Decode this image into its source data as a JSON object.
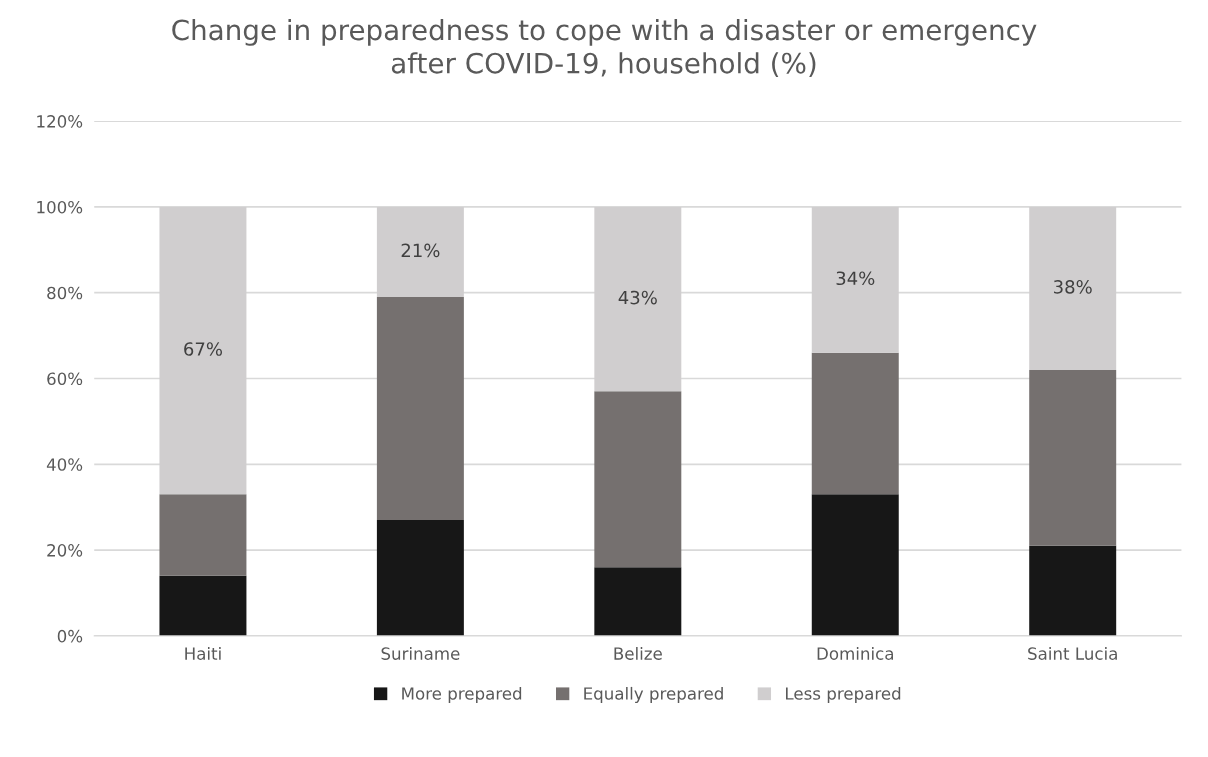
{
  "chart_data": {
    "type": "bar",
    "stacked": true,
    "title": "Change in preparedness to cope with a disaster or emergency\nafter COVID-19, household (%)",
    "categories": [
      "Haiti",
      "Suriname",
      "Belize",
      "Dominica",
      "Saint Lucia"
    ],
    "series": [
      {
        "name": "More prepared",
        "color": "#171717",
        "values": [
          14,
          27,
          16,
          33,
          21
        ]
      },
      {
        "name": "Equally prepared",
        "color": "#75706f",
        "values": [
          19,
          52,
          41,
          33,
          41
        ]
      },
      {
        "name": "Less prepared",
        "color": "#d0cecf",
        "values": [
          67,
          21,
          43,
          34,
          38
        ],
        "value_labels": [
          "67%",
          "21%",
          "43%",
          "34%",
          "38%"
        ]
      }
    ],
    "ylim": [
      0,
      120
    ],
    "yticks": [
      {
        "value": 0,
        "label": "0%"
      },
      {
        "value": 20,
        "label": "20%"
      },
      {
        "value": 40,
        "label": "40%"
      },
      {
        "value": 60,
        "label": "60%"
      },
      {
        "value": 80,
        "label": "80%"
      },
      {
        "value": 100,
        "label": "100%"
      },
      {
        "value": 120,
        "label": "120%"
      }
    ],
    "grid": "y",
    "legend": "bottom"
  }
}
